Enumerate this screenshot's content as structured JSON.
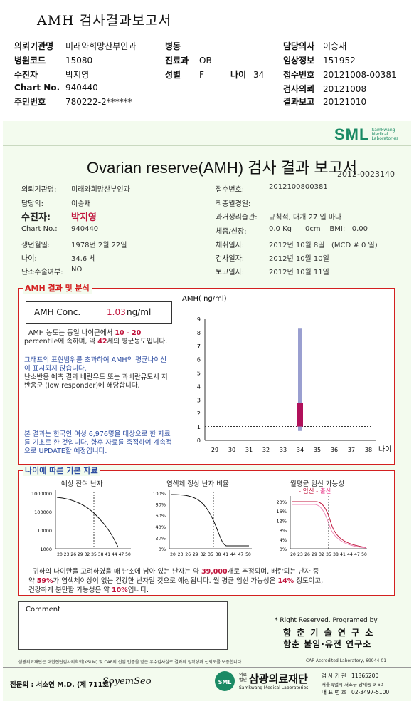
{
  "top": {
    "title": "AMH 검사결과보고서",
    "rows": [
      [
        {
          "k": "의뢰기관명",
          "v": "미래와희망산부인과"
        },
        {
          "k": "병동",
          "v": ""
        },
        {
          "k": "담당의사",
          "v": "이승재"
        }
      ],
      [
        {
          "k": "병원코드",
          "v": "15080"
        },
        {
          "k": "진료과",
          "v": "OB"
        },
        {
          "k": "임상정보",
          "v": "151952"
        }
      ],
      [
        {
          "k": "수진자",
          "v": "박지영"
        },
        {
          "k": "성별",
          "v": "F"
        },
        {
          "k": "나이",
          "v": "34"
        },
        {
          "k": "접수번호",
          "v": "20121008-00381"
        }
      ],
      [
        {
          "k": "Chart No.",
          "v": "940440"
        },
        {
          "k": "검사의뢰",
          "v": "20121008"
        }
      ],
      [
        {
          "k": "주민번호",
          "v": "780222-2******"
        },
        {
          "k": "결과보고",
          "v": "20121010"
        }
      ]
    ]
  },
  "report": {
    "logo": "SML",
    "logo_sub": [
      "Samkwang",
      "Medical",
      "Laboratories"
    ],
    "title": "Ovarian reserve(AMH) 검사 결과 보고서",
    "report_no": "2012-0023140",
    "left_fields": [
      {
        "k": "의뢰기관명:",
        "v": "미래와희망산부인과"
      },
      {
        "k": "담당의:",
        "v": "이승재"
      },
      {
        "k": "수진자:",
        "v": "박지영"
      },
      {
        "k": "Chart No.:",
        "v": "940440"
      },
      {
        "k": "생년월일:",
        "v": "1978년 2월 22일"
      },
      {
        "k": "나이:",
        "v": "34.6 세"
      },
      {
        "k": "난소수술여부:",
        "v": "NO"
      }
    ],
    "right_fields": [
      {
        "k": "접수번호:",
        "v": "2012100800381"
      },
      {
        "k": "최종월경일:",
        "v": ""
      },
      {
        "k": "과거생리습관:",
        "v": "규칙적, 대개  27 일 마다"
      },
      {
        "k": "체중/신장:",
        "v": "0.0 Kg      0cm    BMI:   0.00"
      },
      {
        "k": "채취일자:",
        "v": "2012년 10월 8일   (MCD # 0 일)"
      },
      {
        "k": "검사일자:",
        "v": "2012년 10월 10일"
      },
      {
        "k": "보고일자:",
        "v": "2012년 10월 11일"
      }
    ]
  },
  "amh": {
    "section_title": "AMH 결과 및 분석",
    "conc_label": "AMH Conc.",
    "conc_value": "1.03",
    "conc_unit": "ng/ml",
    "p1_a": "AMH 농도는 동일 나이군에서 ",
    "p1_b": "10 - 20",
    "p1_c": "percentile에 속하며, 약 ",
    "p1_d": "42",
    "p1_e": "세의 평균농도입니다.",
    "p2": "그래프의 표현범위를 초과하여 AMH의 평균나이선이 표시되지 않습니다.",
    "p3": "난소반응 예측 결과 배란유도 또는 과배란유도시 저반응군 (low responder)에 해당합니다.",
    "p4": "본 결과는 한국인 여성 6,976명을 대상으로 한 자료를 기초로 한 것입니다. 향후 자료를 축적하여 계속적으로 UPDATE할 예정입니다."
  },
  "chart_data": [
    {
      "type": "bar",
      "ylabel": "AMH( ng/ml)",
      "xlabel": "나이",
      "x_ticks": [
        "29",
        "30",
        "31",
        "32",
        "33",
        "34",
        "35",
        "36",
        "37",
        "38"
      ],
      "y_ticks": [
        "0",
        "1",
        "2",
        "3",
        "4",
        "5",
        "6",
        "7",
        "8",
        "9"
      ],
      "ylim": [
        0,
        9
      ],
      "range_bar": {
        "age": 34,
        "low": 0.7,
        "high": 8.3
      },
      "value_bar": {
        "age": 34,
        "low": 1.03,
        "high": 2.8
      },
      "reference_line": 1.03
    },
    {
      "type": "line",
      "title": "예상 잔여 난자",
      "y_ticks": [
        "1000000",
        "100000",
        "10000",
        "1000"
      ],
      "x_ticks": [
        "20",
        "23",
        "26",
        "29",
        "32",
        "35",
        "38",
        "41",
        "44",
        "47",
        "50"
      ],
      "yscale": "log",
      "marker_age": 34.6
    },
    {
      "type": "line",
      "title": "염색체 정상 난자 비율",
      "y_ticks": [
        "100%",
        "80%",
        "60%",
        "40%",
        "20%",
        "0%"
      ],
      "x_ticks": [
        "20",
        "23",
        "26",
        "29",
        "32",
        "35",
        "38",
        "41",
        "44",
        "47",
        "50"
      ],
      "marker_age": 34.6
    },
    {
      "type": "line",
      "title": "월평균 임신 가능성",
      "legend": [
        "임신",
        "출산"
      ],
      "y_ticks": [
        "20%",
        "16%",
        "12%",
        "8%",
        "4%",
        "0%"
      ],
      "x_ticks": [
        "20",
        "23",
        "26",
        "29",
        "32",
        "35",
        "38",
        "41",
        "44",
        "47",
        "50"
      ],
      "marker_age": 34.6
    }
  ],
  "age": {
    "section_title": "나이에 따른 기본 자료",
    "s1": "귀하의 나이만을 고려하였을 때 난소에 남아 있는 난자는 약 ",
    "s1v": "39,000",
    "s1b": "개로 추정되며, 배란되는 난자 중",
    "s2": "약 ",
    "s2v": "59%",
    "s2b": "가 염색체이상이 없는 건강한 난자일 것으로 예상됩니다. 월 평균 임신 가능성은 ",
    "s2c": "14%",
    "s2d": " 정도이고,",
    "s3": "건강하게 분만할 가능성은 약 ",
    "s3v": "10%",
    "s3b": "입니다."
  },
  "footer": {
    "comment": "Comment",
    "rights": "* Right Reserved. Programed by",
    "org1": "함 춘 기 술 연 구 소",
    "org2": "함춘 불임·유전 연구소",
    "cert_note": "삼광의료재단은 대한진단검사의학회(KSLM) 및 CAP의 신임 인증을 받은 우수검사실로 결과의 정확성과 신뢰도를 보증합니다.",
    "cap": "CAP  Accredited  Laboratory,  69944-01",
    "specialist": "전문의 : 서소연 M.D. (제 711호)",
    "signature": "SoyemSeo",
    "foundation": "삼광의료재단",
    "foundation_prefix": "의료 법인",
    "foundation_en": "Samkwang Medical Laboratories",
    "contact1": "검 사 기 관 : 11365200",
    "contact2": "서울특별시 서초구 양재동 9-60",
    "contact3": "대 표 번 호 : 02-3497-5100"
  }
}
